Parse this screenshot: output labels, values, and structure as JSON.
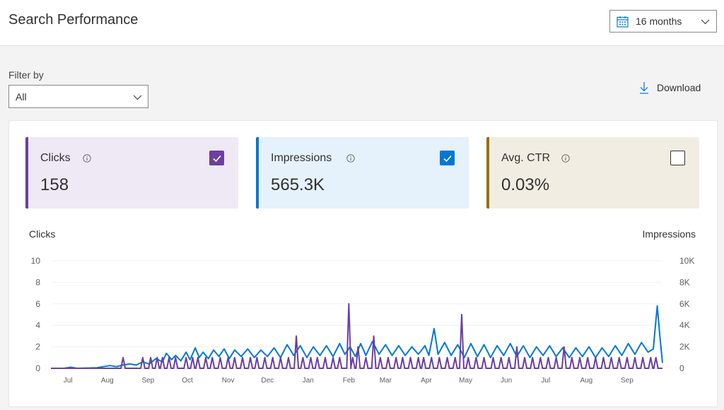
{
  "header": {
    "title": "Search Performance",
    "date_range": "16 months"
  },
  "filter": {
    "label": "Filter by",
    "value": "All"
  },
  "download_label": "Download",
  "metrics": [
    {
      "label": "Clicks",
      "value": "158",
      "checked": true,
      "color": "#6b3fa0"
    },
    {
      "label": "Impressions",
      "value": "565.3K",
      "checked": true,
      "color": "#0078d4"
    },
    {
      "label": "Avg. CTR",
      "value": "0.03%",
      "checked": false,
      "color": "#9c6d06"
    }
  ],
  "chart_data": {
    "type": "line",
    "title": "",
    "xlabel": "",
    "ylabel": "Clicks",
    "y2label": "Impressions",
    "ylim": [
      0,
      10
    ],
    "y2lim": [
      0,
      10000
    ],
    "y_ticks": [
      "0",
      "2",
      "4",
      "6",
      "8",
      "10"
    ],
    "y2_ticks": [
      "0",
      "2K",
      "4K",
      "6K",
      "8K",
      "10K"
    ],
    "x_ticks": [
      "Jul",
      "Aug",
      "Sep",
      "Oct",
      "Nov",
      "Dec",
      "Jan",
      "Feb",
      "Mar",
      "Apr",
      "May",
      "Jun",
      "Jul",
      "Aug",
      "Sep"
    ],
    "x_tick_days": [
      13,
      43,
      74,
      104,
      135,
      165,
      196,
      227,
      255,
      286,
      316,
      347,
      377,
      408,
      439
    ],
    "days": 466,
    "series": [
      {
        "name": "Impressions",
        "axis": "right",
        "color": "#0078d4",
        "points": [
          [
            0,
            0
          ],
          [
            10,
            0
          ],
          [
            15,
            100
          ],
          [
            20,
            0
          ],
          [
            35,
            50
          ],
          [
            40,
            150
          ],
          [
            45,
            250
          ],
          [
            50,
            150
          ],
          [
            55,
            300
          ],
          [
            60,
            400
          ],
          [
            65,
            300
          ],
          [
            70,
            600
          ],
          [
            75,
            400
          ],
          [
            80,
            900
          ],
          [
            85,
            600
          ],
          [
            88,
            1400
          ],
          [
            92,
            800
          ],
          [
            95,
            1200
          ],
          [
            99,
            700
          ],
          [
            103,
            1500
          ],
          [
            106,
            800
          ],
          [
            110,
            1900
          ],
          [
            113,
            1000
          ],
          [
            116,
            1500
          ],
          [
            120,
            900
          ],
          [
            124,
            1700
          ],
          [
            128,
            1100
          ],
          [
            132,
            1800
          ],
          [
            136,
            900
          ],
          [
            140,
            1700
          ],
          [
            145,
            1100
          ],
          [
            150,
            1800
          ],
          [
            155,
            1000
          ],
          [
            160,
            1700
          ],
          [
            165,
            1100
          ],
          [
            170,
            1900
          ],
          [
            175,
            1000
          ],
          [
            180,
            2200
          ],
          [
            185,
            1200
          ],
          [
            190,
            2100
          ],
          [
            195,
            1000
          ],
          [
            200,
            2000
          ],
          [
            205,
            1200
          ],
          [
            210,
            2100
          ],
          [
            215,
            1100
          ],
          [
            220,
            2300
          ],
          [
            224,
            1300
          ],
          [
            228,
            2000
          ],
          [
            232,
            1100
          ],
          [
            236,
            2300
          ],
          [
            240,
            1200
          ],
          [
            245,
            2500
          ],
          [
            250,
            1300
          ],
          [
            255,
            2200
          ],
          [
            260,
            1200
          ],
          [
            265,
            2100
          ],
          [
            270,
            1200
          ],
          [
            275,
            2000
          ],
          [
            280,
            1300
          ],
          [
            285,
            2100
          ],
          [
            288,
            1200
          ],
          [
            292,
            3700
          ],
          [
            295,
            1300
          ],
          [
            300,
            2400
          ],
          [
            305,
            1200
          ],
          [
            310,
            2200
          ],
          [
            315,
            1000
          ],
          [
            320,
            2300
          ],
          [
            325,
            1100
          ],
          [
            330,
            2200
          ],
          [
            335,
            1000
          ],
          [
            340,
            2100
          ],
          [
            345,
            1200
          ],
          [
            350,
            2300
          ],
          [
            355,
            1100
          ],
          [
            360,
            2100
          ],
          [
            365,
            1000
          ],
          [
            370,
            2000
          ],
          [
            375,
            1200
          ],
          [
            380,
            2100
          ],
          [
            385,
            1100
          ],
          [
            390,
            1900
          ],
          [
            395,
            1000
          ],
          [
            400,
            1900
          ],
          [
            405,
            1100
          ],
          [
            410,
            2000
          ],
          [
            415,
            1000
          ],
          [
            420,
            1900
          ],
          [
            425,
            1100
          ],
          [
            430,
            2100
          ],
          [
            435,
            1200
          ],
          [
            440,
            2300
          ],
          [
            445,
            1300
          ],
          [
            450,
            2400
          ],
          [
            455,
            1500
          ],
          [
            459,
            1800
          ],
          [
            462,
            5800
          ],
          [
            464,
            3000
          ],
          [
            466,
            500
          ]
        ]
      },
      {
        "name": "Clicks",
        "axis": "left",
        "color": "#6b3fa0",
        "spikes": [
          [
            55,
            1
          ],
          [
            70,
            1
          ],
          [
            76,
            1
          ],
          [
            81,
            1
          ],
          [
            85,
            1
          ],
          [
            90,
            1
          ],
          [
            95,
            1
          ],
          [
            103,
            1
          ],
          [
            108,
            1
          ],
          [
            112,
            1
          ],
          [
            118,
            1
          ],
          [
            123,
            1
          ],
          [
            129,
            1
          ],
          [
            135,
            1
          ],
          [
            140,
            1
          ],
          [
            146,
            1
          ],
          [
            152,
            1
          ],
          [
            157,
            1
          ],
          [
            163,
            1
          ],
          [
            169,
            1
          ],
          [
            175,
            1
          ],
          [
            181,
            1
          ],
          [
            187,
            3
          ],
          [
            192,
            1
          ],
          [
            198,
            1
          ],
          [
            203,
            1
          ],
          [
            209,
            1
          ],
          [
            215,
            1
          ],
          [
            220,
            1
          ],
          [
            227,
            6
          ],
          [
            230,
            1
          ],
          [
            234,
            2
          ],
          [
            240,
            1
          ],
          [
            246,
            3
          ],
          [
            251,
            1
          ],
          [
            257,
            1
          ],
          [
            263,
            1
          ],
          [
            268,
            1
          ],
          [
            274,
            1
          ],
          [
            280,
            1
          ],
          [
            284,
            1
          ],
          [
            290,
            1
          ],
          [
            296,
            1
          ],
          [
            302,
            1
          ],
          [
            308,
            1
          ],
          [
            313,
            5
          ],
          [
            318,
            1
          ],
          [
            324,
            1
          ],
          [
            330,
            1
          ],
          [
            337,
            1
          ],
          [
            343,
            1
          ],
          [
            349,
            1
          ],
          [
            355,
            2
          ],
          [
            361,
            1
          ],
          [
            367,
            1
          ],
          [
            373,
            1
          ],
          [
            379,
            1
          ],
          [
            385,
            1
          ],
          [
            391,
            2
          ],
          [
            397,
            1
          ],
          [
            403,
            1
          ],
          [
            409,
            1
          ],
          [
            415,
            1
          ],
          [
            421,
            1
          ],
          [
            427,
            1
          ],
          [
            433,
            1
          ],
          [
            439,
            1
          ],
          [
            445,
            1
          ],
          [
            451,
            1
          ],
          [
            457,
            1
          ],
          [
            461,
            1
          ]
        ]
      }
    ]
  }
}
